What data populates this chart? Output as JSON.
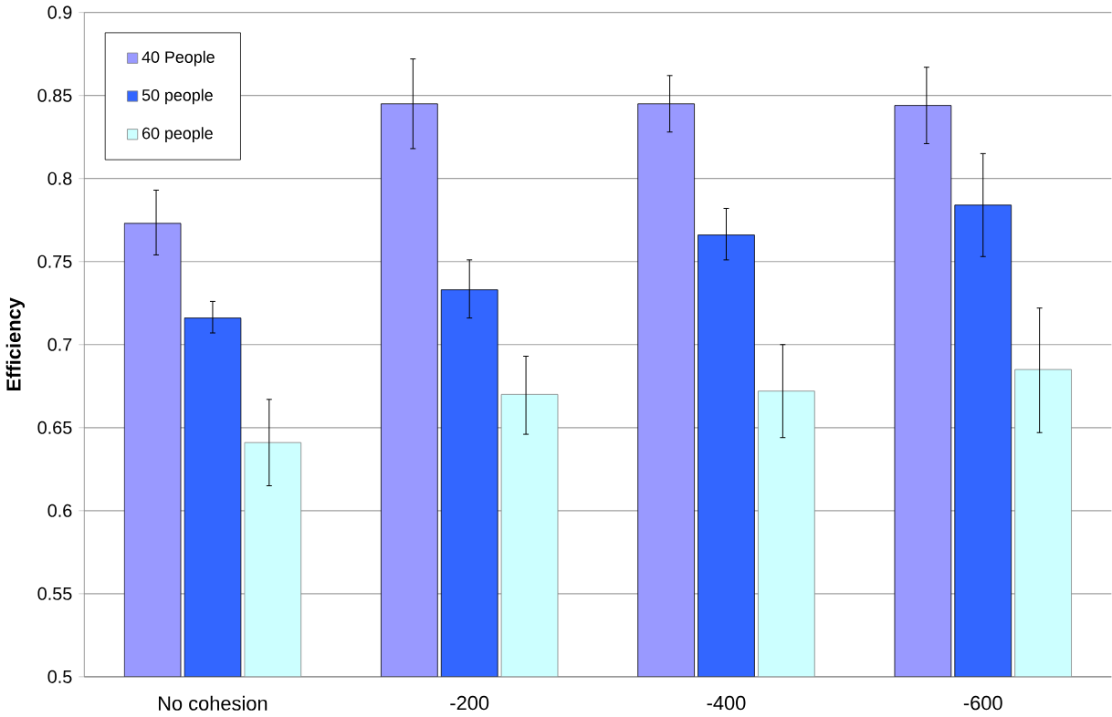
{
  "chart_data": {
    "type": "bar",
    "ylabel": "Efficiency",
    "categories": [
      "No cohesion",
      "-200",
      "-400",
      "-600"
    ],
    "series": [
      {
        "name": "40 People",
        "color": "#9999ff",
        "values": [
          0.773,
          0.845,
          0.845,
          0.844
        ],
        "errors": [
          [
            0.754,
            0.793
          ],
          [
            0.818,
            0.872
          ],
          [
            0.828,
            0.862
          ],
          [
            0.821,
            0.867
          ]
        ]
      },
      {
        "name": "50 people",
        "color": "#3366ff",
        "values": [
          0.716,
          0.733,
          0.766,
          0.784
        ],
        "errors": [
          [
            0.707,
            0.726
          ],
          [
            0.716,
            0.751
          ],
          [
            0.751,
            0.782
          ],
          [
            0.753,
            0.815
          ]
        ]
      },
      {
        "name": "60 people",
        "color": "#ccffff",
        "values": [
          0.641,
          0.67,
          0.672,
          0.685
        ],
        "errors": [
          [
            0.615,
            0.667
          ],
          [
            0.646,
            0.693
          ],
          [
            0.644,
            0.7
          ],
          [
            0.647,
            0.722
          ]
        ]
      }
    ],
    "ylim": [
      0.5,
      0.9
    ],
    "yticks": [
      0.5,
      0.55,
      0.6,
      0.65,
      0.7,
      0.75,
      0.8,
      0.85,
      0.9
    ],
    "grid": "y",
    "legend": "top left"
  }
}
